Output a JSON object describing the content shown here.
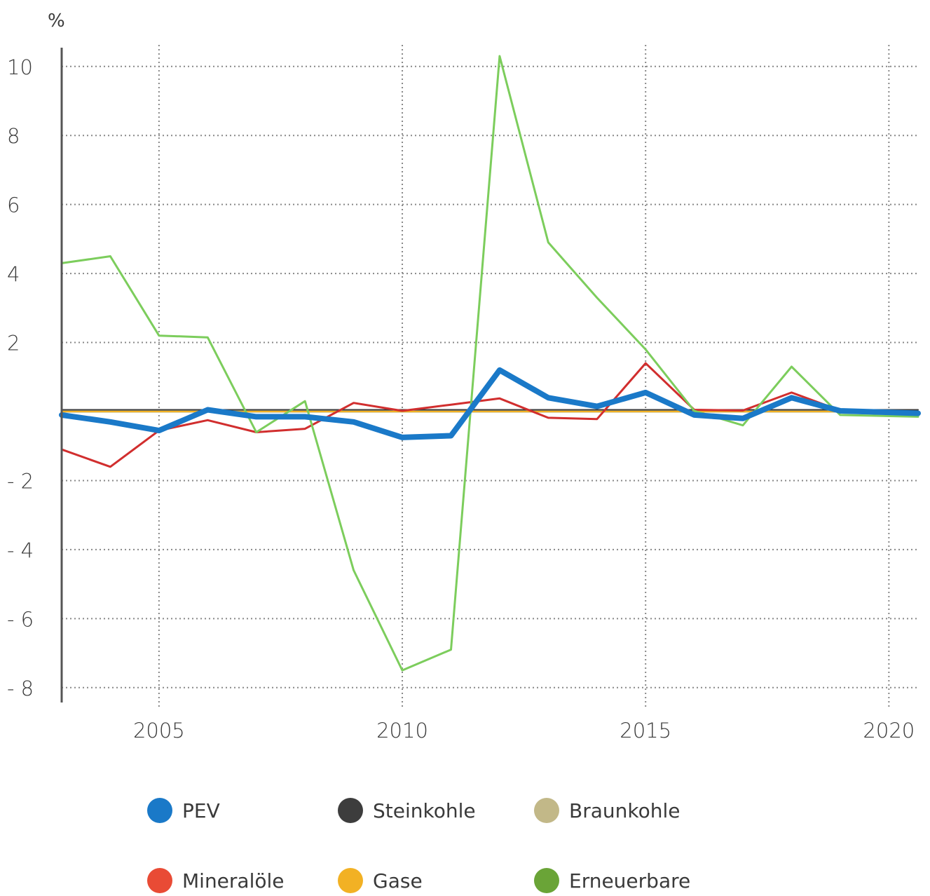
{
  "chart_data": {
    "type": "line",
    "unit_label": "%",
    "x_range": [
      2003,
      2020.6
    ],
    "ylim": [
      -8.5,
      10.5
    ],
    "y_ticks": [
      10,
      8,
      6,
      4,
      2,
      -2,
      -4,
      -6,
      -8
    ],
    "y_tick_labels": [
      "10",
      "8",
      "6",
      "4",
      "2",
      "- 2",
      "- 4",
      "- 6",
      "- 8"
    ],
    "x_ticks": [
      2005,
      2010,
      2015,
      2020
    ],
    "x_tick_labels": [
      "2005",
      "2010",
      "2015",
      "2020"
    ],
    "grid": "dotted",
    "legend_position": "bottom",
    "series": [
      {
        "name": "Braunkohle",
        "color": "#b8b07a",
        "width": 3,
        "x": [
          2003,
          2020.6
        ],
        "values": [
          0,
          0
        ]
      },
      {
        "name": "Gase",
        "color": "#f2b124",
        "width": 2,
        "x": [
          2003,
          2020.6
        ],
        "values": [
          0,
          0
        ]
      },
      {
        "name": "Steinkohle",
        "color": "#3d3d3d",
        "width": 2,
        "x": [
          2003,
          2020.6
        ],
        "values": [
          0.05,
          0.05
        ]
      },
      {
        "name": "Mineralöle",
        "color": "#d12e2e",
        "width": 3,
        "x": [
          2003,
          2004,
          2005,
          2006,
          2007,
          2008,
          2009,
          2010,
          2011,
          2012,
          2013,
          2014,
          2015,
          2016,
          2017,
          2018,
          2019,
          2020.6
        ],
        "values": [
          -1.1,
          -1.6,
          -0.55,
          -0.25,
          -0.6,
          -0.5,
          0.25,
          0.02,
          0.2,
          0.38,
          -0.18,
          -0.22,
          1.4,
          0.05,
          0.03,
          0.55,
          0.03,
          -0.1
        ]
      },
      {
        "name": "Erneuerbare",
        "color": "#7ccd5c",
        "width": 3,
        "x": [
          2003,
          2004,
          2005,
          2006,
          2007,
          2008,
          2009,
          2010,
          2011,
          2012,
          2013,
          2014,
          2015,
          2016,
          2017,
          2018,
          2019,
          2020.6
        ],
        "values": [
          4.3,
          4.5,
          2.2,
          2.15,
          -0.6,
          0.3,
          -4.6,
          -7.5,
          -6.9,
          10.3,
          4.9,
          3.3,
          1.8,
          0.02,
          -0.4,
          1.3,
          -0.1,
          -0.15
        ]
      },
      {
        "name": "PEV",
        "color": "#1a79c8",
        "width": 8,
        "x": [
          2003,
          2004,
          2005,
          2006,
          2007,
          2008,
          2009,
          2010,
          2011,
          2012,
          2013,
          2014,
          2015,
          2016,
          2017,
          2018,
          2019,
          2020.6
        ],
        "values": [
          -0.1,
          -0.3,
          -0.55,
          0.05,
          -0.15,
          -0.15,
          -0.3,
          -0.75,
          -0.7,
          1.2,
          0.4,
          0.15,
          0.55,
          -0.1,
          -0.2,
          0.4,
          0.02,
          -0.05
        ]
      }
    ],
    "legend": [
      {
        "name": "PEV",
        "color": "#1a79c8"
      },
      {
        "name": "Steinkohle",
        "color": "#3d3d3d"
      },
      {
        "name": "Braunkohle",
        "color": "#c2b888"
      },
      {
        "name": "Mineralöle",
        "color": "#e94b35"
      },
      {
        "name": "Gase",
        "color": "#f2b124"
      },
      {
        "name": "Erneuerbare",
        "color": "#6aa437"
      }
    ]
  }
}
